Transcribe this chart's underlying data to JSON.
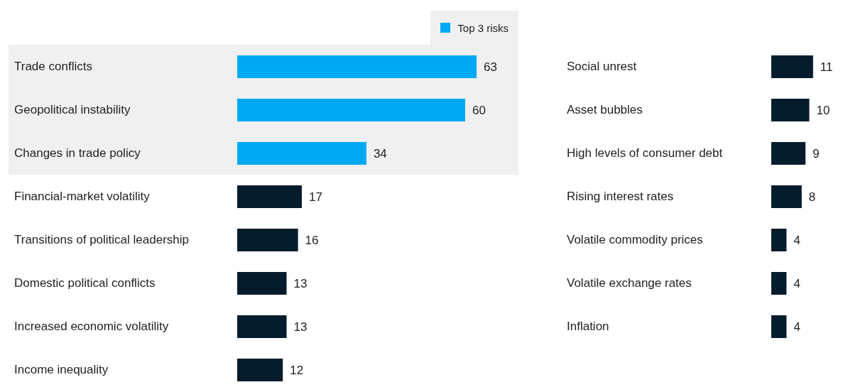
{
  "chart_data": [
    {
      "type": "bar",
      "orientation": "horizontal",
      "stacked": true,
      "categories": [
        "Trade conflicts",
        "Geopolitical instability",
        "Changes in trade policy",
        "Financial-market volatility",
        "Transitions of political leadership",
        "Domestic political conflicts",
        "Increased economic volatility",
        "Income inequality"
      ],
      "series": [
        {
          "name": "Top 3 risks",
          "color": "#00a9f4",
          "values": [
            63,
            60,
            34,
            null,
            null,
            null,
            null,
            null
          ]
        },
        {
          "color": "#051c2c",
          "values": [
            null,
            null,
            null,
            17,
            16,
            13,
            13,
            12
          ]
        }
      ],
      "bands": [
        {
          "axis": "y",
          "from": "Trade conflicts",
          "to": "Changes in trade policy",
          "color": "#f0f0f0"
        }
      ],
      "data_labels": true,
      "legend": "top right",
      "grid": false
    },
    {
      "type": "bar",
      "orientation": "horizontal",
      "categories": [
        "Social unrest",
        "Asset bubbles",
        "High levels of consumer debt",
        "Rising interest rates",
        "Volatile commodity prices",
        "Volatile exchange rates",
        "Inflation"
      ],
      "series": [
        {
          "color": "#051c2c",
          "values": [
            11,
            10,
            9,
            8,
            4,
            4,
            4
          ]
        }
      ],
      "data_labels": true,
      "grid": false
    }
  ]
}
